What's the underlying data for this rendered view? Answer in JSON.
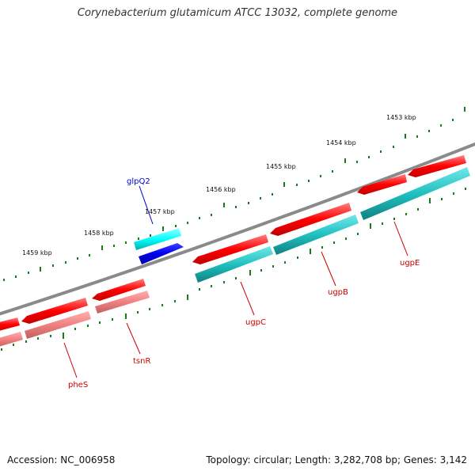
{
  "title": "Corynebacterium glutamicum ATCC 13032, complete genome",
  "footer": {
    "accession": "Accession: NC_006958",
    "summary": "Topology: circular; Length: 3,282,708 bp; Genes: 3,142"
  },
  "colors": {
    "backbone": "#8a8a8a",
    "forward_gene": "#ff0000",
    "reverse_gene": "#20c0c0",
    "rna_gene": "#f08080",
    "glpQ2_forward": "#00ffff",
    "glpQ2_reverse": "#0000ee",
    "ticks": "#1a7a1a",
    "gene_label": "#cc0000",
    "highlight_label": "#0000cc"
  },
  "scale_labels": [
    "1453 kbp",
    "1454 kbp",
    "1455 kbp",
    "1456 kbp",
    "1457 kbp",
    "1458 kbp",
    "1459 kbp"
  ],
  "gene_labels": [
    {
      "name": "glpQ2",
      "type": "highlight"
    },
    {
      "name": "ugpE",
      "type": "gene"
    },
    {
      "name": "ugpB",
      "type": "gene"
    },
    {
      "name": "ugpC",
      "type": "gene"
    },
    {
      "name": "tsnR",
      "type": "gene"
    },
    {
      "name": "pheS",
      "type": "gene"
    }
  ]
}
